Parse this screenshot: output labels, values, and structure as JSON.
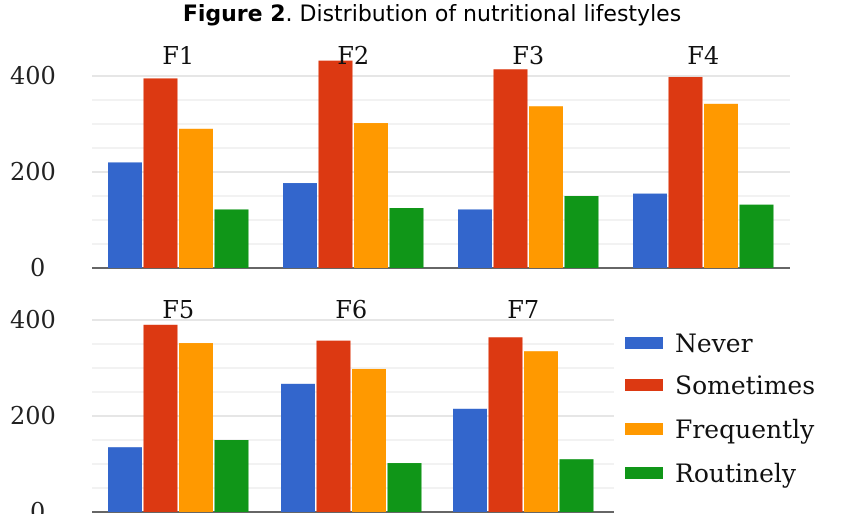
{
  "title": {
    "bold": "Figure 2",
    "rest": ". Distribution of nutritional lifestyles"
  },
  "chart_data": {
    "type": "bar",
    "ylim": [
      0,
      400
    ],
    "yticks": [
      0,
      200,
      400
    ],
    "grid": true,
    "legend": "right",
    "series": [
      {
        "name": "Never",
        "color": "#3366cc"
      },
      {
        "name": "Sometimes",
        "color": "#dc3912"
      },
      {
        "name": "Frequently",
        "color": "#ff9900"
      },
      {
        "name": "Routinely",
        "color": "#109618"
      }
    ],
    "panels": [
      {
        "label": "F1",
        "values": [
          220,
          395,
          290,
          122
        ]
      },
      {
        "label": "F2",
        "values": [
          177,
          432,
          302,
          125
        ]
      },
      {
        "label": "F3",
        "values": [
          122,
          414,
          337,
          150
        ]
      },
      {
        "label": "F4",
        "values": [
          155,
          398,
          342,
          132
        ]
      },
      {
        "label": "F5",
        "values": [
          135,
          390,
          352,
          150
        ]
      },
      {
        "label": "F6",
        "values": [
          267,
          357,
          298,
          102
        ]
      },
      {
        "label": "F7",
        "values": [
          215,
          364,
          335,
          110
        ]
      }
    ]
  }
}
